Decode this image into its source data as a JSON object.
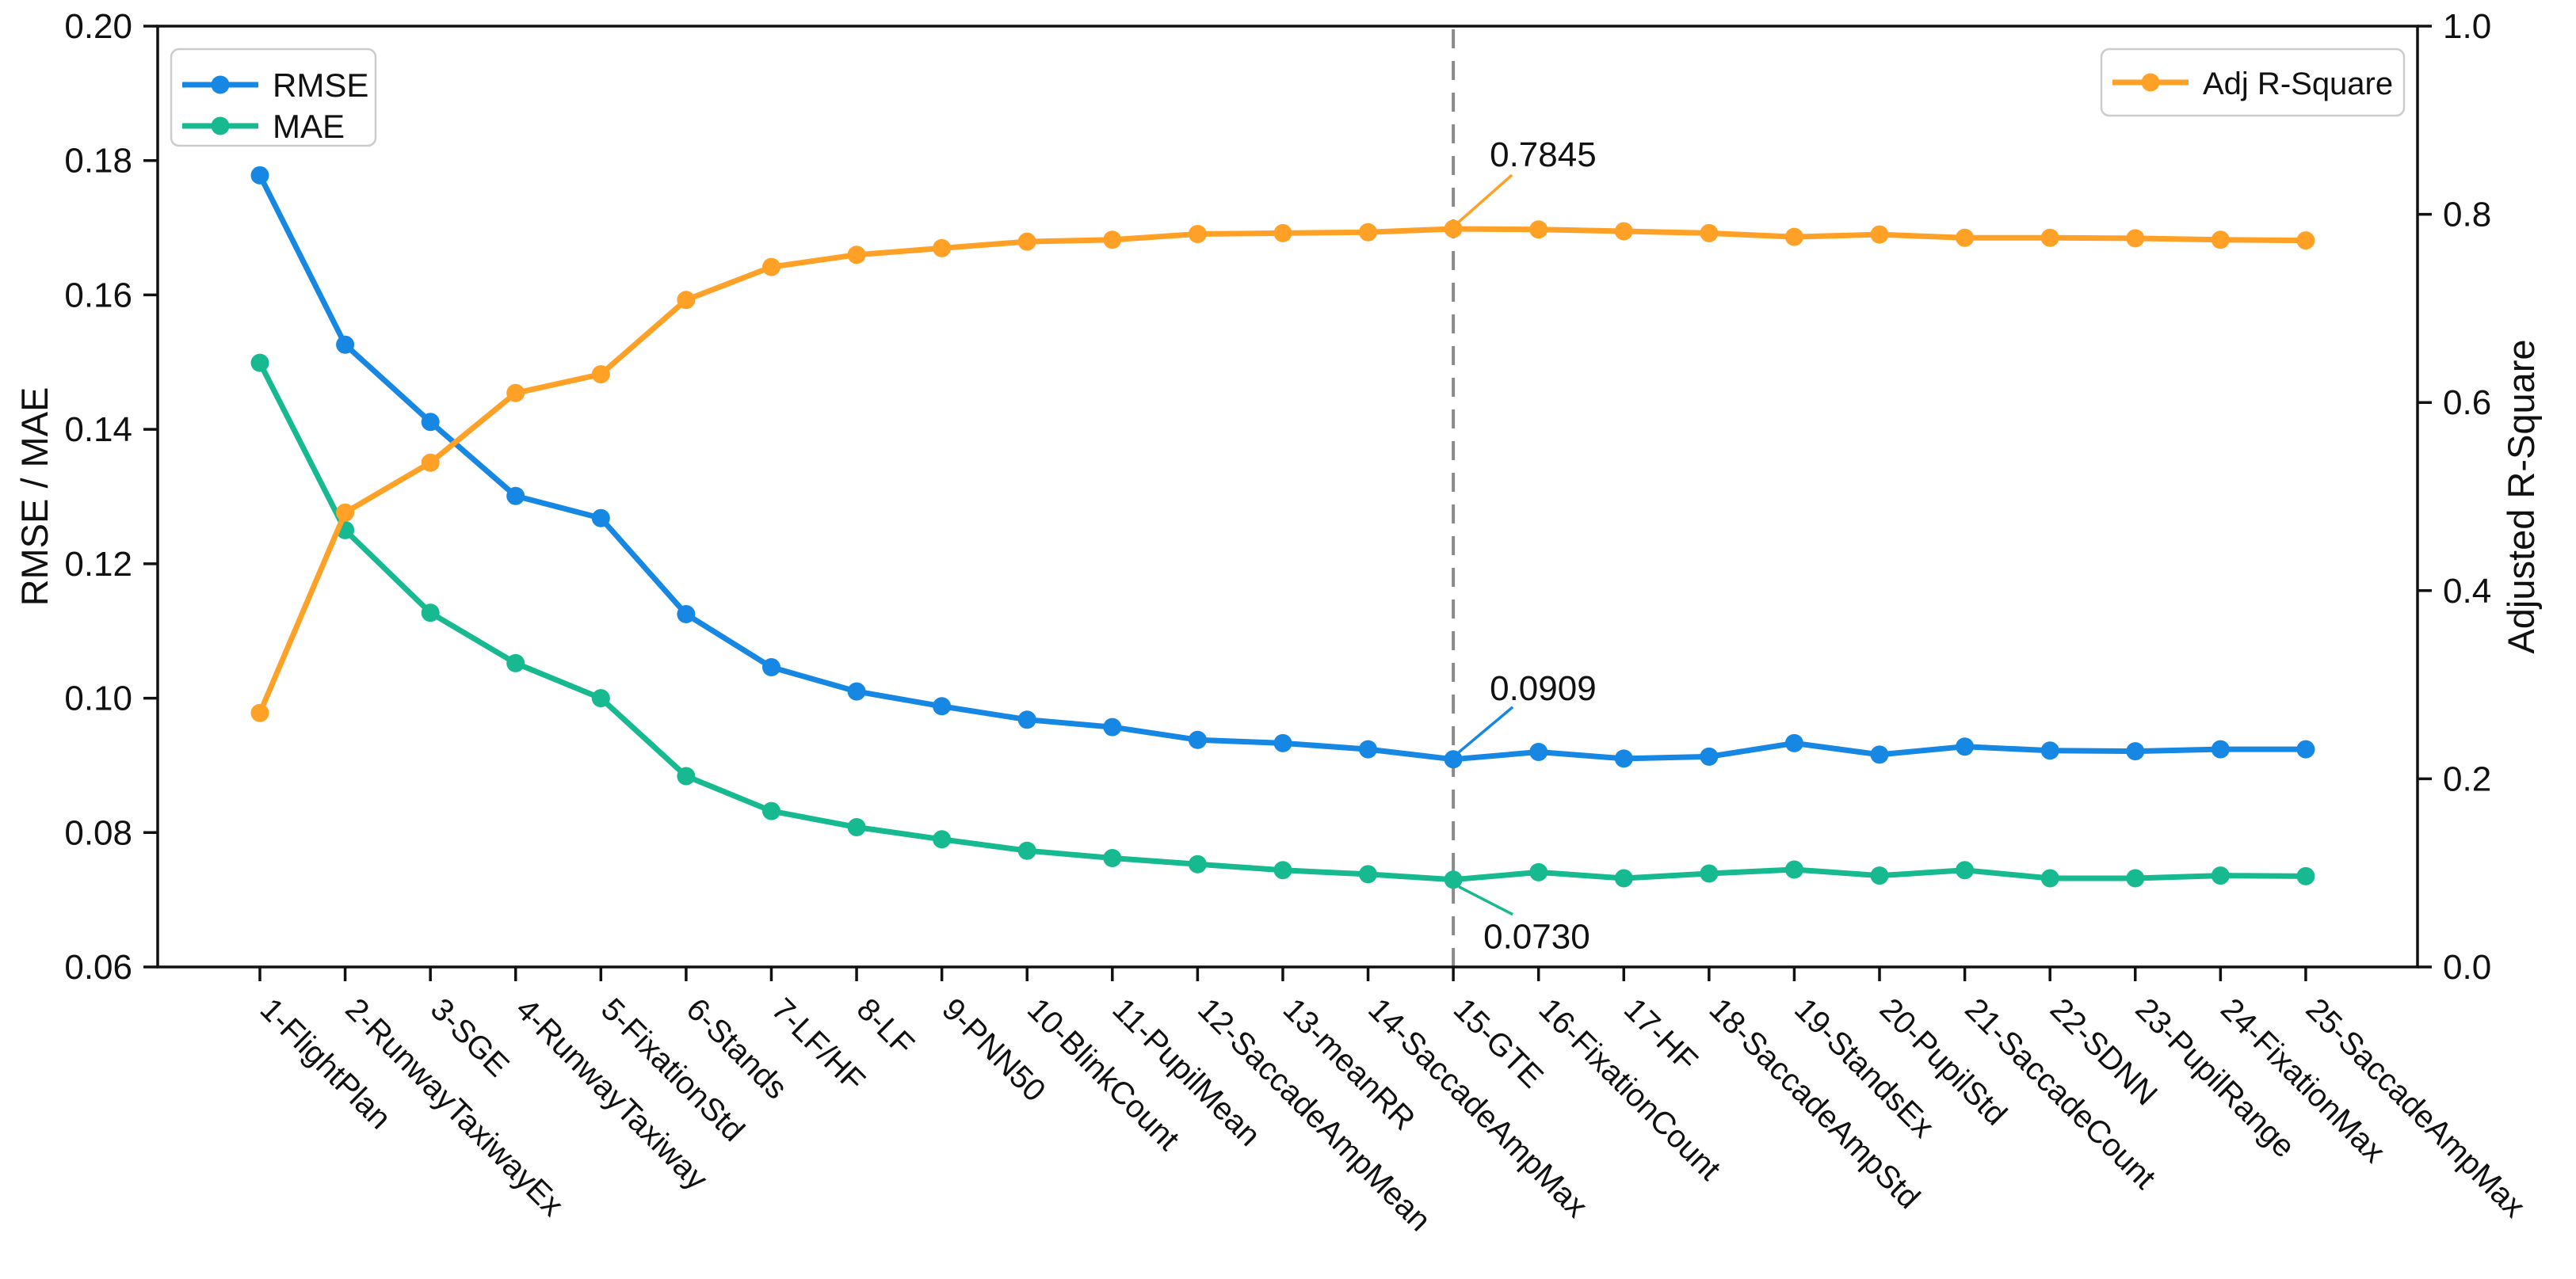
{
  "chart_data": {
    "type": "line",
    "title": "",
    "categories": [
      "1-FlightPlan",
      "2-RunwayTaxiwayEx",
      "3-SGE",
      "4-RunwayTaxiway",
      "5-FixationStd",
      "6-Stands",
      "7-LF/HF",
      "8-LF",
      "9-PNN50",
      "10-BlinkCount",
      "11-PupilMean",
      "12-SaccadeAmpMean",
      "13-meanRR",
      "14-SaccadeAmpMax",
      "15-GTE",
      "16-FixationCount",
      "17-HF",
      "18-SaccadeAmpStd",
      "19-StandsEx",
      "20-PupilStd",
      "21-SaccadeCount",
      "22-SDNN",
      "23-PupilRange",
      "24-FixationMax",
      "25-SaccadeAmpMax"
    ],
    "series": [
      {
        "name": "RMSE",
        "axis": "left",
        "color": "#1687e3",
        "values": [
          0.1778,
          0.1526,
          0.1411,
          0.1301,
          0.1268,
          0.1125,
          0.1046,
          0.101,
          0.0988,
          0.0968,
          0.0957,
          0.0938,
          0.0933,
          0.0924,
          0.0909,
          0.092,
          0.091,
          0.0913,
          0.0933,
          0.0916,
          0.0928,
          0.0922,
          0.0921,
          0.0924,
          0.0924
        ]
      },
      {
        "name": "MAE",
        "axis": "left",
        "color": "#16b990",
        "values": [
          0.1499,
          0.125,
          0.1127,
          0.1052,
          0.1,
          0.0884,
          0.0832,
          0.0808,
          0.079,
          0.0773,
          0.0762,
          0.0753,
          0.0744,
          0.0738,
          0.073,
          0.0741,
          0.0732,
          0.0739,
          0.0745,
          0.0736,
          0.0744,
          0.0732,
          0.0732,
          0.0736,
          0.0735
        ]
      },
      {
        "name": "Adj R-Square",
        "axis": "right",
        "color": "#ffa127",
        "values": [
          0.27,
          0.483,
          0.536,
          0.61,
          0.63,
          0.709,
          0.744,
          0.757,
          0.764,
          0.771,
          0.773,
          0.779,
          0.78,
          0.781,
          0.7845,
          0.7838,
          0.782,
          0.78,
          0.776,
          0.7785,
          0.775,
          0.775,
          0.7745,
          0.773,
          0.7722
        ]
      }
    ],
    "left_axis": {
      "label": "RMSE / MAE",
      "min": 0.06,
      "max": 0.2,
      "tick_labels": [
        "0.06",
        "0.08",
        "0.10",
        "0.12",
        "0.14",
        "0.16",
        "0.18",
        "0.20"
      ]
    },
    "right_axis": {
      "label": "Adjusted R-Square",
      "min": 0.0,
      "max": 1.0,
      "tick_labels": [
        "0.0",
        "0.2",
        "0.4",
        "0.6",
        "0.8",
        "1.0"
      ]
    },
    "vline": {
      "category": "15-GTE",
      "style": "dashed",
      "color": "#8a8a8a"
    },
    "annotations": [
      {
        "text": "0.7845",
        "series": "Adj R-Square",
        "category": "15-GTE",
        "color": "#ffa127"
      },
      {
        "text": "0.0909",
        "series": "RMSE",
        "category": "15-GTE",
        "color": "#1687e3"
      },
      {
        "text": "0.0730",
        "series": "MAE",
        "category": "15-GTE",
        "color": "#16b990"
      }
    ],
    "legend_left": {
      "entries": [
        "RMSE",
        "MAE"
      ]
    },
    "legend_right": {
      "entries": [
        "Adj R-Square"
      ]
    },
    "grid": false,
    "legend_position_left": "upper-left",
    "legend_position_right": "upper-right",
    "background": "#ffffff"
  }
}
